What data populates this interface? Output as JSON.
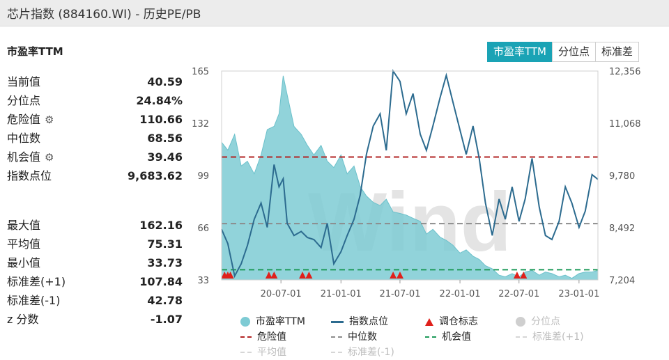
{
  "window": {
    "title": "芯片指数 (884160.WI) - 历史PE/PB"
  },
  "section_title": "市盈率TTM",
  "tabs": [
    {
      "label": "市盈率TTM",
      "active": true
    },
    {
      "label": "分位点",
      "active": false
    },
    {
      "label": "标准差",
      "active": false
    }
  ],
  "stats_top": [
    {
      "label": "当前值",
      "value": "40.59",
      "gear": false
    },
    {
      "label": "分位点",
      "value": "24.84%",
      "gear": false
    },
    {
      "label": "危险值",
      "value": "110.66",
      "gear": true
    },
    {
      "label": "中位数",
      "value": "68.56",
      "gear": false
    },
    {
      "label": "机会值",
      "value": "39.46",
      "gear": true
    },
    {
      "label": "指数点位",
      "value": "9,683.62",
      "gear": false
    }
  ],
  "stats_bottom": [
    {
      "label": "最大值",
      "value": "162.16"
    },
    {
      "label": "平均值",
      "value": "75.31"
    },
    {
      "label": "最小值",
      "value": "33.73"
    },
    {
      "label": "标准差(+1)",
      "value": "107.84"
    },
    {
      "label": "标准差(-1)",
      "value": "42.78"
    },
    {
      "label": "z 分数",
      "value": "-1.07"
    }
  ],
  "watermark": "Wind",
  "chart_data": {
    "type": "area",
    "x_ticks": [
      "20-07-01",
      "21-01-01",
      "21-07-01",
      "22-01-01",
      "22-07-01",
      "23-01-01"
    ],
    "y_left_ticks": [
      "165",
      "132",
      "99",
      "66",
      "33"
    ],
    "y_right_ticks": [
      "12,356",
      "11,068",
      "9,780",
      "8,492",
      "7,204"
    ],
    "y_left_range": [
      33,
      165
    ],
    "y_right_range": [
      7204,
      12356
    ],
    "x_range": [
      "2020-01-01",
      "2023-02-28"
    ],
    "danger_value": 110.66,
    "median_value": 68.56,
    "opportunity_value": 39.46,
    "pe_series": {
      "x": [
        "2020-01-01",
        "2020-01-20",
        "2020-02-10",
        "2020-03-01",
        "2020-03-20",
        "2020-04-10",
        "2020-05-01",
        "2020-05-20",
        "2020-06-10",
        "2020-06-25",
        "2020-07-08",
        "2020-07-20",
        "2020-08-10",
        "2020-09-01",
        "2020-09-20",
        "2020-10-10",
        "2020-11-01",
        "2020-11-20",
        "2020-12-10",
        "2021-01-01",
        "2021-01-20",
        "2021-02-10",
        "2021-03-01",
        "2021-03-20",
        "2021-04-10",
        "2021-05-01",
        "2021-05-20",
        "2021-06-10",
        "2021-07-01",
        "2021-07-20",
        "2021-08-10",
        "2021-09-01",
        "2021-09-20",
        "2021-10-10",
        "2021-11-01",
        "2021-11-20",
        "2021-12-10",
        "2022-01-01",
        "2022-01-20",
        "2022-02-10",
        "2022-03-01",
        "2022-03-20",
        "2022-04-10",
        "2022-05-01",
        "2022-05-20",
        "2022-06-10",
        "2022-07-01",
        "2022-07-20",
        "2022-08-10",
        "2022-09-01",
        "2022-09-20",
        "2022-10-10",
        "2022-11-01",
        "2022-11-20",
        "2022-12-10",
        "2023-01-01",
        "2023-01-20",
        "2023-02-10",
        "2023-02-28"
      ],
      "y": [
        120,
        115,
        125,
        105,
        108,
        100,
        112,
        128,
        130,
        138,
        162,
        150,
        130,
        125,
        118,
        112,
        118,
        108,
        104,
        112,
        100,
        105,
        92,
        86,
        82,
        80,
        84,
        76,
        75,
        74,
        72,
        70,
        62,
        65,
        60,
        58,
        55,
        50,
        52,
        48,
        46,
        42,
        40,
        36,
        35,
        37,
        35,
        38,
        39,
        36,
        38,
        37,
        35,
        36,
        34,
        37,
        38,
        38,
        39
      ],
      "name": "市盈率TTM"
    },
    "index_series": {
      "x": [
        "2020-01-01",
        "2020-01-20",
        "2020-02-10",
        "2020-03-01",
        "2020-03-20",
        "2020-04-10",
        "2020-05-01",
        "2020-05-20",
        "2020-06-10",
        "2020-06-25",
        "2020-07-08",
        "2020-07-20",
        "2020-08-10",
        "2020-09-01",
        "2020-09-20",
        "2020-10-10",
        "2020-11-01",
        "2020-11-20",
        "2020-12-10",
        "2021-01-01",
        "2021-01-20",
        "2021-02-10",
        "2021-03-01",
        "2021-03-20",
        "2021-04-10",
        "2021-05-01",
        "2021-05-20",
        "2021-06-10",
        "2021-07-01",
        "2021-07-20",
        "2021-08-10",
        "2021-09-01",
        "2021-09-20",
        "2021-10-10",
        "2021-11-01",
        "2021-11-20",
        "2021-12-10",
        "2022-01-01",
        "2022-01-20",
        "2022-02-10",
        "2022-03-01",
        "2022-03-20",
        "2022-04-10",
        "2022-05-01",
        "2022-05-20",
        "2022-06-10",
        "2022-07-01",
        "2022-07-20",
        "2022-08-10",
        "2022-09-01",
        "2022-09-20",
        "2022-10-10",
        "2022-11-01",
        "2022-11-20",
        "2022-12-10",
        "2023-01-01",
        "2023-01-20",
        "2023-02-10",
        "2023-02-28"
      ],
      "y": [
        8450,
        8100,
        7300,
        7600,
        8050,
        8700,
        9100,
        8500,
        10050,
        9500,
        9700,
        8600,
        8300,
        8400,
        8250,
        8200,
        8000,
        8600,
        7600,
        7900,
        8300,
        8700,
        9300,
        10300,
        11000,
        11300,
        10400,
        12356,
        12100,
        11300,
        11800,
        10800,
        10400,
        11000,
        11700,
        12250,
        11600,
        10900,
        10300,
        11000,
        10200,
        9100,
        8300,
        9200,
        8700,
        9500,
        8650,
        9200,
        10200,
        9000,
        8300,
        8200,
        8650,
        9500,
        9100,
        8500,
        8900,
        9800,
        9683.62
      ],
      "name": "指数点位"
    },
    "rebalance_markers": [
      "2020-01-10",
      "2020-01-20",
      "2020-01-28",
      "2020-05-25",
      "2020-06-10",
      "2020-09-05",
      "2020-09-25",
      "2021-06-10",
      "2021-07-01",
      "2022-06-25",
      "2022-07-15"
    ],
    "legend": [
      {
        "label": "市盈率TTM",
        "icon": "circle",
        "color": "#7ecbd4",
        "dim": false
      },
      {
        "label": "指数点位",
        "icon": "line",
        "color": "#2c6b8f",
        "dim": false
      },
      {
        "label": "调仓标志",
        "icon": "triangle",
        "color": "#e0201b",
        "dim": false
      },
      {
        "label": "分位点",
        "icon": "circle",
        "color": "#cfcfcf",
        "dim": true
      },
      {
        "label": "危险值",
        "icon": "dash",
        "color": "#b22222",
        "dim": false
      },
      {
        "label": "中位数",
        "icon": "dash",
        "color": "#8c8c8c",
        "dim": false
      },
      {
        "label": "机会值",
        "icon": "dash",
        "color": "#1e9a5a",
        "dim": false
      },
      {
        "label": "标准差(+1)",
        "icon": "dash",
        "color": "#d6d6d6",
        "dim": true
      },
      {
        "label": "平均值",
        "icon": "dash",
        "color": "#d6d6d6",
        "dim": true
      },
      {
        "label": "标准差(-1)",
        "icon": "dash",
        "color": "#d6d6d6",
        "dim": true
      }
    ]
  }
}
